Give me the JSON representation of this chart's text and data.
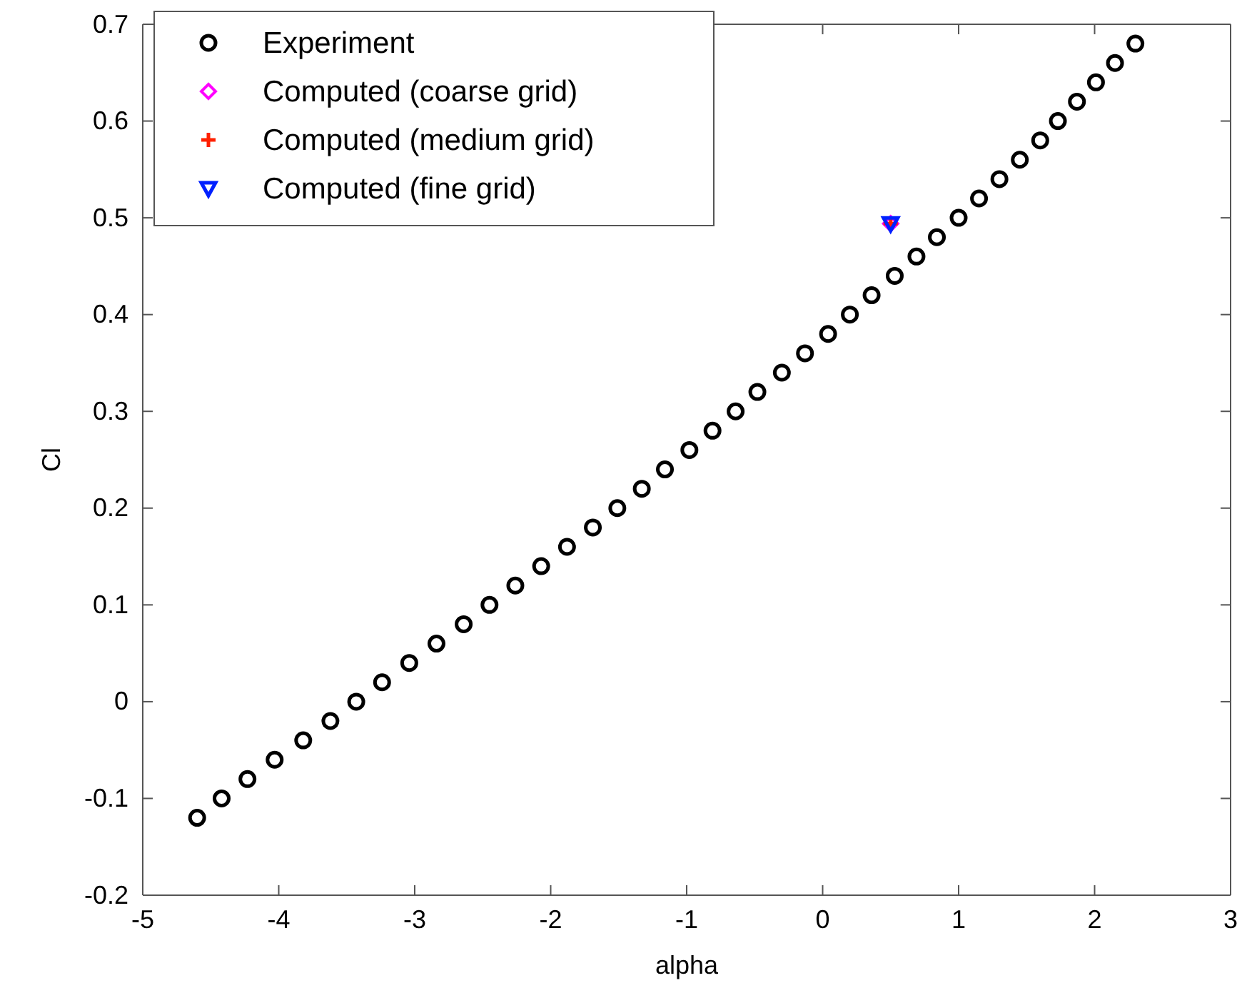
{
  "chart_data": {
    "type": "scatter",
    "xlabel": "alpha",
    "ylabel": "Cl",
    "xlim": [
      -5,
      3
    ],
    "ylim": [
      -0.2,
      0.7
    ],
    "xticks": [
      -5,
      -4,
      -3,
      -2,
      -1,
      0,
      1,
      2,
      3
    ],
    "yticks": [
      -0.2,
      -0.1,
      0,
      0.1,
      0.2,
      0.3,
      0.4,
      0.5,
      0.6,
      0.7
    ],
    "legend": "top left",
    "grid": false,
    "series": [
      {
        "name": "Experiment",
        "color": "#000000",
        "marker": "circle",
        "x": [
          -4.6,
          -4.42,
          -4.23,
          -4.03,
          -3.82,
          -3.62,
          -3.43,
          -3.24,
          -3.04,
          -2.84,
          -2.64,
          -2.45,
          -2.26,
          -2.07,
          -1.88,
          -1.69,
          -1.51,
          -1.33,
          -1.16,
          -0.98,
          -0.81,
          -0.64,
          -0.48,
          -0.3,
          -0.13,
          0.04,
          0.2,
          0.36,
          0.53,
          0.69,
          0.84,
          1.0,
          1.15,
          1.3,
          1.45,
          1.6,
          1.73,
          1.87,
          2.01,
          2.15,
          2.3
        ],
        "values": [
          -0.12,
          -0.1,
          -0.08,
          -0.06,
          -0.04,
          -0.02,
          0,
          0.02,
          0.04,
          0.06,
          0.08,
          0.1,
          0.12,
          0.14,
          0.16,
          0.18,
          0.2,
          0.22,
          0.24,
          0.26,
          0.28,
          0.3,
          0.32,
          0.34,
          0.36,
          0.38,
          0.4,
          0.42,
          0.44,
          0.46,
          0.48,
          0.5,
          0.52,
          0.54,
          0.56,
          0.58,
          0.6,
          0.62,
          0.64,
          0.66,
          0.68
        ]
      },
      {
        "name": "Computed (coarse grid)",
        "color": "#ff00ff",
        "marker": "diamond",
        "x": [
          0.5
        ],
        "values": [
          0.494
        ]
      },
      {
        "name": "Computed (medium grid)",
        "color": "#ff2000",
        "marker": "cross",
        "x": [
          0.5
        ],
        "values": [
          0.494
        ]
      },
      {
        "name": "Computed (fine grid)",
        "color": "#0020ff",
        "marker": "triangle",
        "x": [
          0.5
        ],
        "values": [
          0.494
        ]
      }
    ]
  }
}
